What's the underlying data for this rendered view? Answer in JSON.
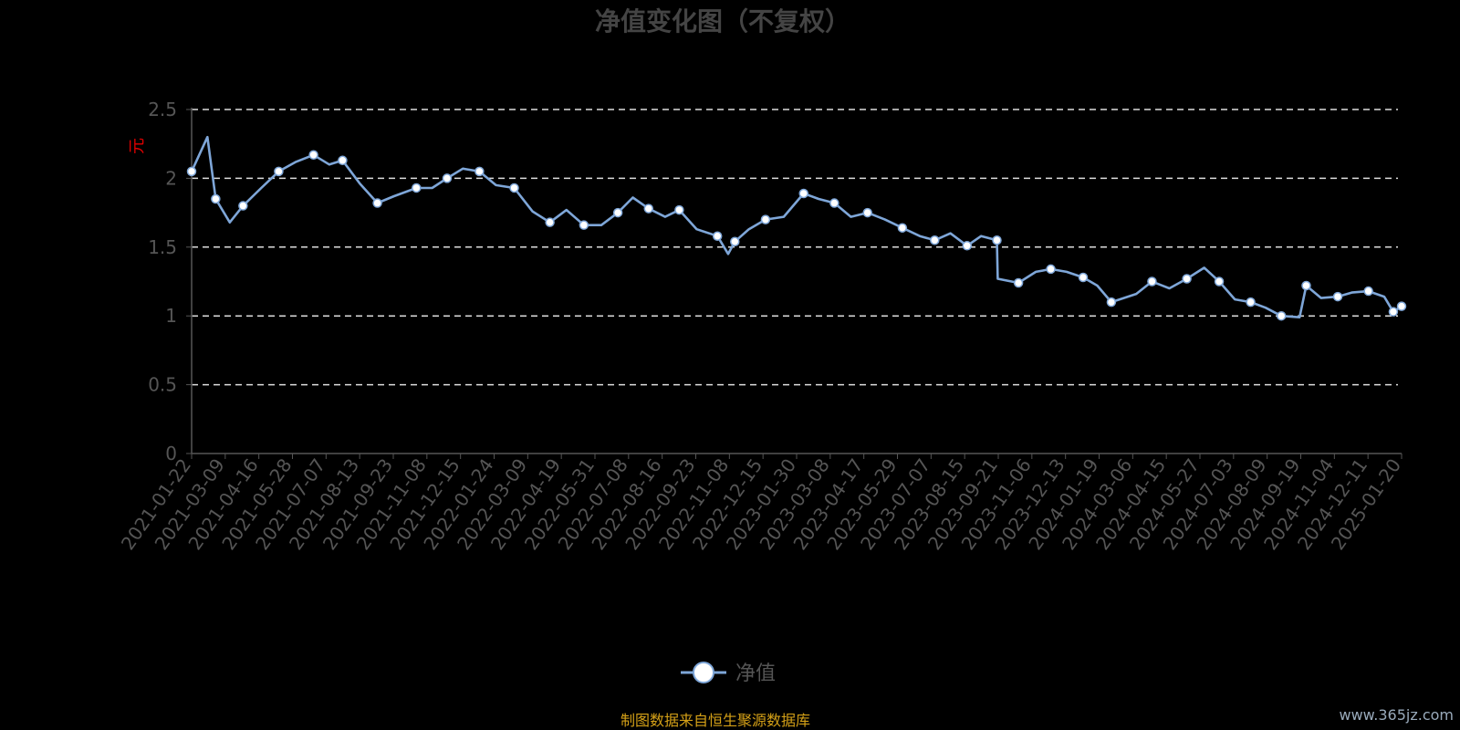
{
  "chart_data": {
    "type": "line",
    "title": "净值变化图（不复权）",
    "ylabel": "元",
    "ylim": [
      0,
      2.5
    ],
    "yticks": [
      "0",
      "0.5",
      "1",
      "1.5",
      "2",
      "2.5"
    ],
    "grid": "horizontal-dashed",
    "legend_placement": "bottom-center",
    "x_tick_labels": [
      "2021-01-22",
      "2021-03-09",
      "2021-04-16",
      "2021-05-28",
      "2021-07-07",
      "2021-08-13",
      "2021-09-23",
      "2021-11-08",
      "2021-12-15",
      "2022-01-24",
      "2022-03-09",
      "2022-04-19",
      "2022-05-31",
      "2022-07-08",
      "2022-08-16",
      "2022-09-23",
      "2022-11-08",
      "2022-12-15",
      "2023-01-30",
      "2023-03-08",
      "2023-04-17",
      "2023-05-29",
      "2023-07-07",
      "2023-08-15",
      "2023-09-21",
      "2023-11-06",
      "2023-12-13",
      "2024-01-19",
      "2024-03-06",
      "2024-04-15",
      "2024-05-27",
      "2024-07-03",
      "2024-08-09",
      "2024-09-19",
      "2024-11-04",
      "2024-12-11",
      "2025-01-20"
    ],
    "series": [
      {
        "name": "净值",
        "color": "#7ea6d8",
        "x": [
          "2021-01-22",
          "2021-02-10",
          "2021-02-20",
          "2021-03-09",
          "2021-03-25",
          "2021-04-16",
          "2021-05-07",
          "2021-05-28",
          "2021-06-18",
          "2021-07-07",
          "2021-07-23",
          "2021-08-13",
          "2021-09-03",
          "2021-09-23",
          "2021-10-20",
          "2021-11-08",
          "2021-11-26",
          "2021-12-15",
          "2022-01-04",
          "2022-01-24",
          "2022-02-15",
          "2022-03-09",
          "2022-03-30",
          "2022-04-19",
          "2022-05-10",
          "2022-05-31",
          "2022-06-20",
          "2022-07-08",
          "2022-07-27",
          "2022-08-16",
          "2022-09-02",
          "2022-09-23",
          "2022-10-18",
          "2022-10-31",
          "2022-11-08",
          "2022-11-25",
          "2022-12-15",
          "2023-01-06",
          "2023-01-30",
          "2023-02-17",
          "2023-03-08",
          "2023-03-28",
          "2023-04-17",
          "2023-05-08",
          "2023-05-29",
          "2023-06-19",
          "2023-07-07",
          "2023-07-26",
          "2023-08-15",
          "2023-09-01",
          "2023-09-20",
          "2023-09-21",
          "2023-10-16",
          "2023-11-06",
          "2023-11-24",
          "2023-12-13",
          "2024-01-02",
          "2024-01-19",
          "2024-02-05",
          "2024-03-06",
          "2024-03-25",
          "2024-04-15",
          "2024-05-06",
          "2024-05-27",
          "2024-06-14",
          "2024-07-03",
          "2024-07-22",
          "2024-08-09",
          "2024-08-28",
          "2024-09-19",
          "2024-09-27",
          "2024-10-15",
          "2024-11-04",
          "2024-11-21",
          "2024-12-11",
          "2024-12-30",
          "2025-01-10",
          "2025-01-20"
        ],
        "values": [
          2.05,
          2.3,
          1.85,
          1.68,
          1.8,
          1.93,
          2.05,
          2.12,
          2.17,
          2.1,
          2.13,
          1.96,
          1.82,
          1.87,
          1.93,
          1.93,
          2.0,
          2.07,
          2.05,
          1.95,
          1.93,
          1.76,
          1.68,
          1.77,
          1.66,
          1.66,
          1.75,
          1.86,
          1.78,
          1.72,
          1.77,
          1.63,
          1.58,
          1.45,
          1.54,
          1.63,
          1.7,
          1.72,
          1.89,
          1.85,
          1.82,
          1.72,
          1.75,
          1.7,
          1.64,
          1.58,
          1.55,
          1.6,
          1.51,
          1.58,
          1.55,
          1.27,
          1.24,
          1.32,
          1.34,
          1.32,
          1.28,
          1.22,
          1.1,
          1.16,
          1.25,
          1.2,
          1.27,
          1.35,
          1.25,
          1.12,
          1.1,
          1.06,
          1.0,
          0.99,
          1.22,
          1.13,
          1.14,
          1.17,
          1.18,
          1.14,
          1.03,
          1.07
        ]
      }
    ]
  },
  "legend": {
    "label": "净值"
  },
  "source_note": "制图数据来自恒生聚源数据库",
  "watermark": "www.365jz.com"
}
